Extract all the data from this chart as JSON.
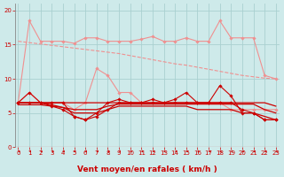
{
  "bg_color": "#ceeaea",
  "grid_color": "#aad0d0",
  "xlabel": "Vent moyen/en rafales ( km/h )",
  "xlabel_color": "#cc0000",
  "xlabel_fontsize": 6.5,
  "tick_color": "#cc0000",
  "xticks": [
    0,
    1,
    2,
    3,
    4,
    5,
    6,
    7,
    8,
    9,
    10,
    11,
    12,
    13,
    14,
    15,
    16,
    17,
    18,
    19,
    20,
    21,
    22,
    23
  ],
  "yticks": [
    0,
    5,
    10,
    15,
    20
  ],
  "ylim": [
    0,
    21
  ],
  "xlim": [
    -0.3,
    23.3
  ],
  "series": [
    {
      "label": "light_pink_diagonal",
      "color": "#f09090",
      "linewidth": 0.8,
      "marker": null,
      "linestyle": "--",
      "values": [
        15.5,
        15.3,
        15.1,
        14.9,
        14.7,
        14.5,
        14.3,
        14.1,
        13.9,
        13.7,
        13.4,
        13.1,
        12.8,
        12.5,
        12.2,
        12.0,
        11.7,
        11.4,
        11.1,
        10.8,
        10.5,
        10.3,
        10.1,
        10.0
      ]
    },
    {
      "label": "pink_marker_top",
      "color": "#f09090",
      "linewidth": 0.8,
      "marker": "D",
      "markersize": 1.8,
      "linestyle": "-",
      "values": [
        6.5,
        18.5,
        15.5,
        15.5,
        15.5,
        15.2,
        16.0,
        16.0,
        15.5,
        15.5,
        15.5,
        15.8,
        16.2,
        15.5,
        15.5,
        16.0,
        15.5,
        15.5,
        18.5,
        16.0,
        16.0,
        16.0,
        10.5,
        10.0
      ]
    },
    {
      "label": "pink_marker_mid",
      "color": "#f09090",
      "linewidth": 0.8,
      "marker": "D",
      "markersize": 1.8,
      "linestyle": "-",
      "values": [
        6.5,
        8.0,
        6.5,
        6.5,
        6.5,
        5.5,
        6.5,
        11.5,
        10.5,
        8.0,
        8.0,
        6.5,
        6.5,
        6.5,
        6.5,
        6.5,
        6.5,
        6.5,
        6.5,
        5.5,
        5.5,
        5.5,
        5.5,
        5.5
      ]
    },
    {
      "label": "dark_red_flat1",
      "color": "#cc0000",
      "linewidth": 0.9,
      "marker": null,
      "linestyle": "-",
      "values": [
        6.5,
        6.5,
        6.5,
        6.5,
        6.5,
        6.5,
        6.5,
        6.5,
        6.5,
        6.5,
        6.5,
        6.5,
        6.5,
        6.5,
        6.5,
        6.5,
        6.5,
        6.5,
        6.5,
        6.5,
        6.5,
        6.5,
        6.5,
        6.0
      ]
    },
    {
      "label": "dark_red_flat2",
      "color": "#cc0000",
      "linewidth": 0.9,
      "marker": null,
      "linestyle": "-",
      "values": [
        6.2,
        6.2,
        6.2,
        6.0,
        5.8,
        5.5,
        5.5,
        5.5,
        6.0,
        6.3,
        6.3,
        6.3,
        6.3,
        6.3,
        6.3,
        6.3,
        6.3,
        6.3,
        6.3,
        6.3,
        6.3,
        6.3,
        5.5,
        5.0
      ]
    },
    {
      "label": "dark_red_marker1",
      "color": "#cc0000",
      "linewidth": 0.8,
      "marker": "D",
      "markersize": 1.8,
      "linestyle": "-",
      "values": [
        6.5,
        8.0,
        6.5,
        6.5,
        6.5,
        4.5,
        4.0,
        5.0,
        6.5,
        7.0,
        6.5,
        6.5,
        7.0,
        6.5,
        7.0,
        8.0,
        6.5,
        6.5,
        9.0,
        7.5,
        5.0,
        5.0,
        4.0,
        4.0
      ]
    },
    {
      "label": "dark_red_marker2",
      "color": "#cc0000",
      "linewidth": 0.8,
      "marker": "D",
      "markersize": 1.8,
      "linestyle": "-",
      "values": [
        6.5,
        6.5,
        6.5,
        6.0,
        5.5,
        4.5,
        4.0,
        4.5,
        5.5,
        6.5,
        6.5,
        6.5,
        6.5,
        6.5,
        6.5,
        6.5,
        6.5,
        6.5,
        6.5,
        6.5,
        5.5,
        5.0,
        4.0,
        4.0
      ]
    },
    {
      "label": "dark_red_bottom",
      "color": "#cc0000",
      "linewidth": 0.9,
      "marker": null,
      "linestyle": "-",
      "values": [
        6.5,
        6.5,
        6.5,
        6.2,
        5.8,
        5.0,
        5.0,
        5.0,
        5.5,
        6.0,
        6.0,
        6.0,
        6.0,
        6.0,
        6.0,
        6.0,
        5.5,
        5.5,
        5.5,
        5.5,
        5.0,
        5.0,
        4.5,
        4.0
      ]
    }
  ]
}
